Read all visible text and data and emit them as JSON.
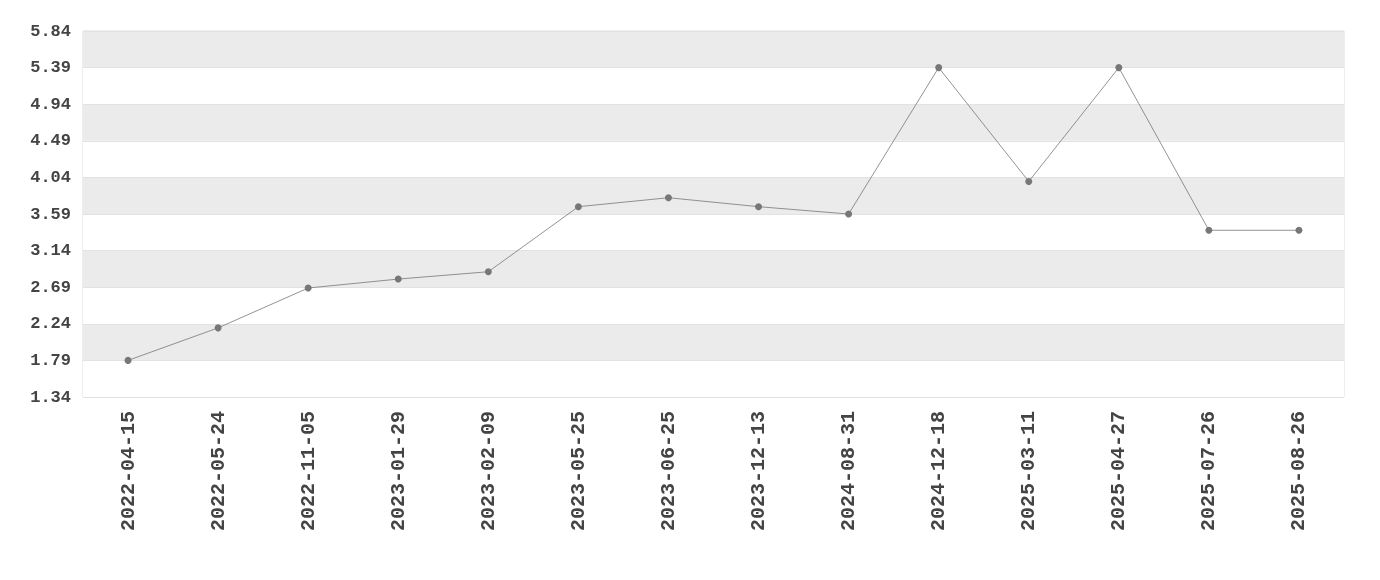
{
  "chart_data": {
    "type": "line",
    "categories": [
      "2022-04-15",
      "2022-05-24",
      "2022-11-05",
      "2023-01-29",
      "2023-02-09",
      "2023-05-25",
      "2023-06-25",
      "2023-12-13",
      "2024-08-31",
      "2024-12-18",
      "2025-03-11",
      "2025-04-27",
      "2025-07-26",
      "2025-08-26"
    ],
    "series": [
      {
        "color": "#777777",
        "values": [
          1.79,
          2.19,
          2.68,
          2.79,
          2.88,
          3.68,
          3.79,
          3.68,
          3.59,
          5.39,
          3.99,
          5.39,
          3.39,
          3.39
        ]
      }
    ],
    "ylim": [
      1.34,
      5.84
    ],
    "yticks": [
      1.34,
      1.79,
      2.24,
      2.69,
      3.14,
      3.59,
      4.04,
      4.49,
      4.94,
      5.39,
      5.84
    ],
    "grid": "y",
    "marker": "circle",
    "line_style": "solid"
  }
}
